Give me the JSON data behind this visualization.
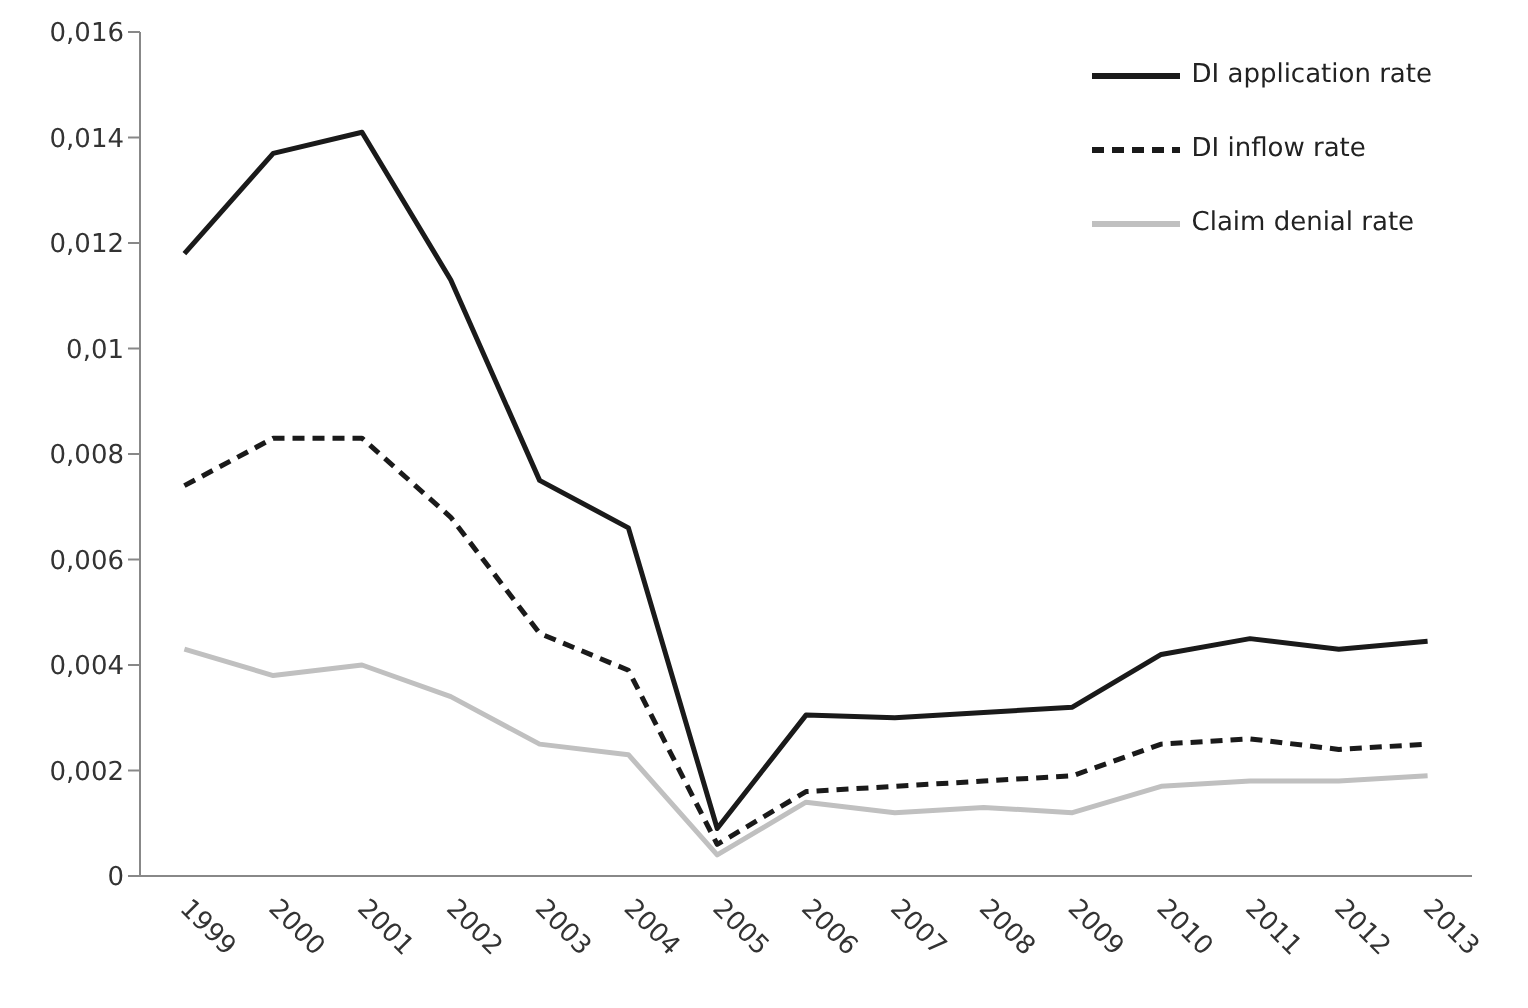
{
  "chart_data": {
    "type": "line",
    "categories": [
      "1999",
      "2000",
      "2001",
      "2002",
      "2003",
      "2004",
      "2005",
      "2006",
      "2007",
      "2008",
      "2009",
      "2010",
      "2011",
      "2012",
      "2013"
    ],
    "series": [
      {
        "name": "DI application rate",
        "color": "#1a1a1a",
        "line_style": "solid",
        "values": [
          0.0118,
          0.0137,
          0.0141,
          0.0113,
          0.0075,
          0.0066,
          0.0009,
          0.00305,
          0.003,
          0.0031,
          0.0032,
          0.0042,
          0.0045,
          0.0043,
          0.00445
        ]
      },
      {
        "name": "DI inflow rate",
        "color": "#1a1a1a",
        "line_style": "dashed",
        "values": [
          0.0074,
          0.0083,
          0.0083,
          0.0068,
          0.0046,
          0.0039,
          0.0006,
          0.0016,
          0.0017,
          0.0018,
          0.0019,
          0.0025,
          0.0026,
          0.0024,
          0.0025
        ]
      },
      {
        "name": "Claim denial rate",
        "color": "#c0c0c0",
        "line_style": "solid",
        "values": [
          0.0043,
          0.0038,
          0.004,
          0.0034,
          0.0025,
          0.0023,
          0.0004,
          0.0014,
          0.0012,
          0.0013,
          0.0012,
          0.0017,
          0.0018,
          0.0018,
          0.0019
        ]
      }
    ],
    "ylim": [
      0,
      0.016
    ],
    "yticks": [
      0,
      {
        "value": 0.002,
        "label": "0,002"
      },
      {
        "value": 0.004,
        "label": "0,004"
      },
      {
        "value": 0.006,
        "label": "0,006"
      },
      {
        "value": 0.008,
        "label": "0,008"
      },
      {
        "value": 0.01,
        "label": "0,01"
      },
      {
        "value": 0.012,
        "label": "0,012"
      },
      {
        "value": 0.014,
        "label": "0,014"
      },
      {
        "value": 0.016,
        "label": "0,016"
      }
    ],
    "grid": false,
    "legend": "top right",
    "marker": "none"
  }
}
